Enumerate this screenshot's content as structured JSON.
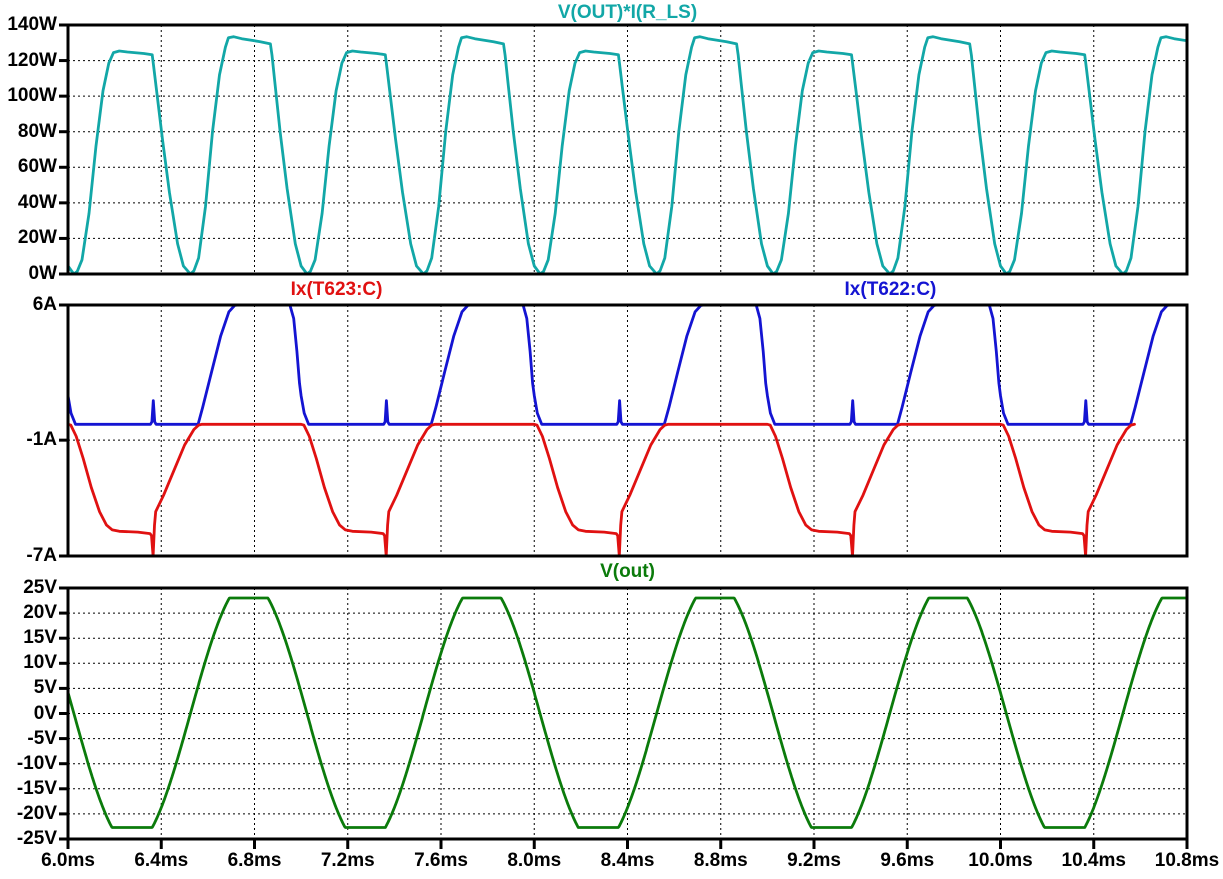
{
  "window": {
    "background": "#ffffff",
    "text_color": "#000000",
    "grid_color": "#000000",
    "border_color": "#000000"
  },
  "x_axis": {
    "unit": "ms",
    "min_ms": 6.0,
    "max_ms": 10.8,
    "tick_values": [
      6.0,
      6.4,
      6.8,
      7.2,
      7.6,
      8.0,
      8.4,
      8.8,
      9.2,
      9.6,
      10.0,
      10.4,
      10.8
    ],
    "tick_labels": [
      "6.0ms",
      "6.4ms",
      "6.8ms",
      "7.2ms",
      "7.6ms",
      "8.0ms",
      "8.4ms",
      "8.8ms",
      "9.2ms",
      "9.6ms",
      "10.0ms",
      "10.4ms",
      "10.8ms"
    ]
  },
  "chart_data": {
    "type": "line",
    "grid": "dashed",
    "legend_position": "above-each-pane",
    "panes": [
      {
        "id": "power",
        "title": "V(OUT)*I(R_LS)",
        "title_color": "#12a7a7",
        "y_axis": {
          "min": 0,
          "max": 140,
          "unit": "W",
          "ticks": [
            {
              "v": 140,
              "label": "140W"
            },
            {
              "v": 120,
              "label": "120W"
            },
            {
              "v": 100,
              "label": "100W"
            },
            {
              "v": 80,
              "label": "80W"
            },
            {
              "v": 60,
              "label": "60W"
            },
            {
              "v": 40,
              "label": "40W"
            },
            {
              "v": 20,
              "label": "20W"
            },
            {
              "v": 0,
              "label": "0W"
            }
          ],
          "grid_values": [
            20,
            40,
            60,
            80,
            100,
            120
          ]
        },
        "series": [
          {
            "name": "V(OUT)*I(R_LS)",
            "color": "#12a7a7",
            "generator": "breakpoints",
            "period_ms": 1.0,
            "t0_ms": 6.025,
            "description": "Rectified power humps, 2 per ms, alternating ~125W and ~133W flat tops with droop, zero valleys at voltage zero crossings",
            "breakpoints": [
              [
                0.0,
                0
              ],
              [
                0.015,
                1.5
              ],
              [
                0.035,
                8
              ],
              [
                0.065,
                34
              ],
              [
                0.095,
                72
              ],
              [
                0.125,
                103
              ],
              [
                0.15,
                118.5
              ],
              [
                0.17,
                124.5
              ],
              [
                0.195,
                125.4
              ],
              [
                0.23,
                124.8
              ],
              [
                0.3,
                124.0
              ],
              [
                0.336,
                123.3
              ],
              [
                0.342,
                117
              ],
              [
                0.355,
                103
              ],
              [
                0.38,
                76
              ],
              [
                0.41,
                46
              ],
              [
                0.445,
                17
              ],
              [
                0.47,
                4.5
              ],
              [
                0.5,
                0
              ],
              [
                0.515,
                1.8
              ],
              [
                0.535,
                9
              ],
              [
                0.565,
                38
              ],
              [
                0.595,
                80
              ],
              [
                0.625,
                112
              ],
              [
                0.65,
                127.5
              ],
              [
                0.663,
                132.8
              ],
              [
                0.685,
                133.4
              ],
              [
                0.72,
                132.3
              ],
              [
                0.8,
                130.6
              ],
              [
                0.843,
                129.4
              ],
              [
                0.85,
                123
              ],
              [
                0.862,
                108
              ],
              [
                0.885,
                80
              ],
              [
                0.915,
                48
              ],
              [
                0.95,
                17
              ],
              [
                0.975,
                4.5
              ],
              [
                1.0,
                0
              ]
            ]
          }
        ]
      },
      {
        "id": "currents",
        "trace_labels": [
          {
            "text": "Ix(T623:C)",
            "color": "#e01111",
            "center_frac": 0.24
          },
          {
            "text": "Ix(T622:C)",
            "color": "#1414d2",
            "center_frac": 0.735
          }
        ],
        "y_axis": {
          "min": -7,
          "max": 6,
          "unit": "A",
          "ticks": [
            {
              "v": 6,
              "label": "6A"
            },
            {
              "v": -1,
              "label": "-1A"
            },
            {
              "v": -7,
              "label": "-7A"
            }
          ],
          "grid_values": [
            -1
          ]
        },
        "series": [
          {
            "name": "Ix(T622:C)",
            "color": "#1414d2",
            "generator": "breakpoints",
            "period_ms": 1.0,
            "t0_ms": 6.0,
            "description": "Upper transistor collector current: ~-0.2A baseline, narrow +1A spike at 6.366ms+k, trapezoid to 6A clipped top 6.73-6.95ms+k",
            "breakpoints": [
              [
                0.0,
                1.3
              ],
              [
                0.013,
                0.4
              ],
              [
                0.032,
                -0.18
              ],
              [
                0.354,
                -0.18
              ],
              [
                0.36,
                -0.05
              ],
              [
                0.366,
                1.05
              ],
              [
                0.372,
                -0.05
              ],
              [
                0.378,
                -0.18
              ],
              [
                0.558,
                -0.18
              ],
              [
                0.578,
                0.7
              ],
              [
                0.615,
                2.5
              ],
              [
                0.655,
                4.4
              ],
              [
                0.69,
                5.65
              ],
              [
                0.715,
                5.98
              ],
              [
                0.73,
                6.0
              ],
              [
                0.952,
                6.0
              ],
              [
                0.968,
                5.3
              ],
              [
                0.982,
                3.6
              ],
              [
                0.993,
                1.95
              ],
              [
                1.0,
                1.3
              ]
            ]
          },
          {
            "name": "Ix(T623:C)",
            "color": "#e01111",
            "generator": "breakpoints",
            "period_ms": 1.0,
            "t0_ms": 6.0,
            "description": "Lower transistor collector current: ~-0.2A baseline, conducts to -5.8A flat bottom with turn-off spike to -7A at 6.366ms+k",
            "breakpoints": [
              [
                0.0,
                -0.18
              ],
              [
                0.012,
                -0.22
              ],
              [
                0.035,
                -0.8
              ],
              [
                0.065,
                -1.95
              ],
              [
                0.1,
                -3.45
              ],
              [
                0.135,
                -4.7
              ],
              [
                0.165,
                -5.4
              ],
              [
                0.19,
                -5.65
              ],
              [
                0.22,
                -5.72
              ],
              [
                0.3,
                -5.76
              ],
              [
                0.352,
                -5.84
              ],
              [
                0.358,
                -5.95
              ],
              [
                0.365,
                -7.0
              ],
              [
                0.371,
                -5.4
              ],
              [
                0.376,
                -4.7
              ],
              [
                0.41,
                -3.85
              ],
              [
                0.455,
                -2.55
              ],
              [
                0.5,
                -1.25
              ],
              [
                0.54,
                -0.45
              ],
              [
                0.56,
                -0.22
              ],
              [
                0.575,
                -0.18
              ],
              [
                1.0,
                -0.18
              ]
            ]
          }
        ]
      },
      {
        "id": "voltage",
        "title": "V(out)",
        "title_color": "#0b7b0b",
        "y_axis": {
          "min": -25,
          "max": 25,
          "unit": "V",
          "ticks": [
            {
              "v": 25,
              "label": "25V"
            },
            {
              "v": 20,
              "label": "20V"
            },
            {
              "v": 15,
              "label": "15V"
            },
            {
              "v": 10,
              "label": "10V"
            },
            {
              "v": 5,
              "label": "5V"
            },
            {
              "v": 0,
              "label": "0V"
            },
            {
              "v": -5,
              "label": "-5V"
            },
            {
              "v": -10,
              "label": "-10V"
            },
            {
              "v": -15,
              "label": "-15V"
            },
            {
              "v": -20,
              "label": "-20V"
            },
            {
              "v": -25,
              "label": "-25V"
            }
          ],
          "grid_values": [
            -20,
            -15,
            -10,
            -5,
            0,
            5,
            10,
            15,
            20
          ]
        },
        "series": [
          {
            "name": "V(out)",
            "color": "#0b7b0b",
            "generator": "clipped_sine",
            "period_ms": 1.0,
            "t_zero_fall_ms": 6.025,
            "amplitude": 26.5,
            "clip_high": 23.0,
            "clip_low": -22.7,
            "sample_step_ms": 0.003,
            "description": "Output voltage: 1kHz sine clipped flat at +23V and -22.7V"
          }
        ]
      }
    ]
  }
}
